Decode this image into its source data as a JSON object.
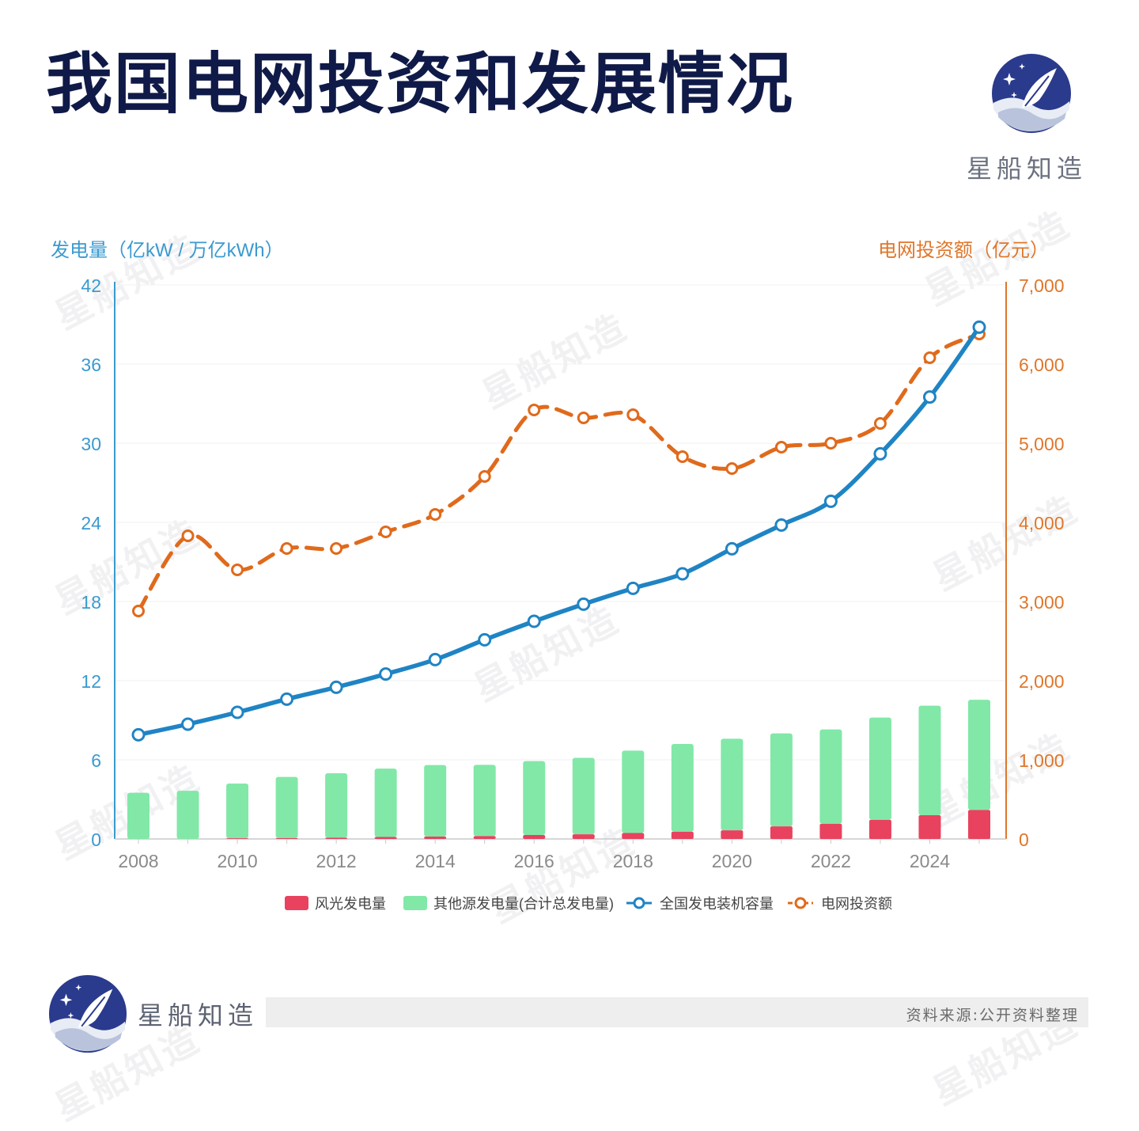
{
  "page": {
    "title": "我国电网投资和发展情况",
    "brand_name": "星船知造",
    "watermark_text": "星船知造",
    "source": "资料来源:公开资料整理"
  },
  "colors": {
    "title": "#101a48",
    "left_axis": "#3a9ad0",
    "right_axis": "#e0762a",
    "wind_solar": "#e8425f",
    "other_sources": "#82e8a8",
    "capacity_line": "#1f84c4",
    "investment_line": "#e06a1c",
    "logo_navy": "#2a3a8c"
  },
  "chart_data": {
    "type": "bar",
    "x": [
      2008,
      2009,
      2010,
      2011,
      2012,
      2013,
      2014,
      2015,
      2016,
      2017,
      2018,
      2019,
      2020,
      2021,
      2022,
      2023,
      2024,
      2025
    ],
    "x_tick_labels": [
      "2008",
      "2010",
      "2012",
      "2014",
      "2016",
      "2018",
      "2020",
      "2022",
      "2024"
    ],
    "left_axis": {
      "label": "发电量（亿kW / 万亿kWh）",
      "ylim": [
        0,
        42
      ],
      "ticks": [
        "0",
        "6",
        "12",
        "18",
        "24",
        "30",
        "36",
        "42"
      ]
    },
    "right_axis": {
      "label": "电网投资额（亿元）",
      "ylim": [
        0,
        7000
      ],
      "ticks": [
        "0",
        "1,000",
        "2,000",
        "3,000",
        "4,000",
        "5,000",
        "6,000",
        "7,000"
      ]
    },
    "series": [
      {
        "name": "风光发电量",
        "type": "bar",
        "axis": "left",
        "stack": "generation",
        "values": [
          0.0,
          0.0,
          0.05,
          0.07,
          0.1,
          0.15,
          0.18,
          0.22,
          0.3,
          0.35,
          0.45,
          0.55,
          0.65,
          0.95,
          1.15,
          1.45,
          1.8,
          2.2
        ]
      },
      {
        "name": "其他源发电量(合计总发电量)",
        "type": "bar",
        "axis": "left",
        "stack": "generation",
        "values": [
          3.5,
          3.65,
          4.15,
          4.63,
          4.88,
          5.18,
          5.42,
          5.4,
          5.6,
          5.8,
          6.25,
          6.65,
          6.95,
          7.05,
          7.15,
          7.75,
          8.3,
          8.35
        ]
      },
      {
        "name": "全国发电装机容量",
        "type": "line",
        "axis": "left",
        "values": [
          7.9,
          8.7,
          9.6,
          10.6,
          11.5,
          12.5,
          13.6,
          15.1,
          16.5,
          17.8,
          19.0,
          20.1,
          22.0,
          23.8,
          25.6,
          29.2,
          33.5,
          38.8
        ]
      },
      {
        "name": "电网投资额",
        "type": "line",
        "axis": "right",
        "dashed": true,
        "values": [
          2880,
          3830,
          3400,
          3670,
          3670,
          3880,
          4100,
          4580,
          5420,
          5320,
          5360,
          4830,
          4680,
          4950,
          5000,
          5250,
          6080,
          6380
        ]
      }
    ],
    "legend_position": "bottom",
    "grid": true
  }
}
